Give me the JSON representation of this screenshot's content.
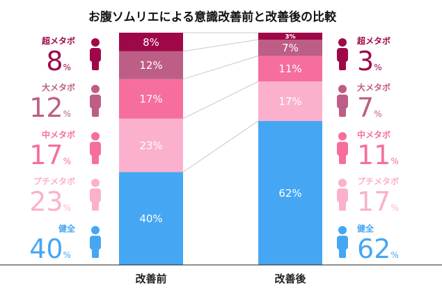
{
  "chart_data": {
    "type": "bar",
    "title": "お腹ソムリエによる意識改善前と改善後の比較",
    "categories": [
      "改善前",
      "改善後"
    ],
    "value_unit": "%",
    "ylim": [
      0,
      100
    ],
    "series": [
      {
        "name": "健全",
        "values": [
          40,
          62
        ],
        "color": "#45a7f3",
        "label_color": "#ffffff"
      },
      {
        "name": "プチメタボ",
        "values": [
          23,
          17
        ],
        "color": "#fbb1cd",
        "label_color": "#ffffff"
      },
      {
        "name": "中メタボ",
        "values": [
          17,
          11
        ],
        "color": "#f66e9e",
        "label_color": "#ffffff"
      },
      {
        "name": "大メタボ",
        "values": [
          12,
          7
        ],
        "color": "#bd5e86",
        "label_color": "#ffffff"
      },
      {
        "name": "超メタボ",
        "values": [
          8,
          3
        ],
        "color": "#9f0848",
        "label_color": "#ffffff"
      }
    ],
    "legend_icon": "person-icon",
    "legend_placement": "left-and-right"
  }
}
